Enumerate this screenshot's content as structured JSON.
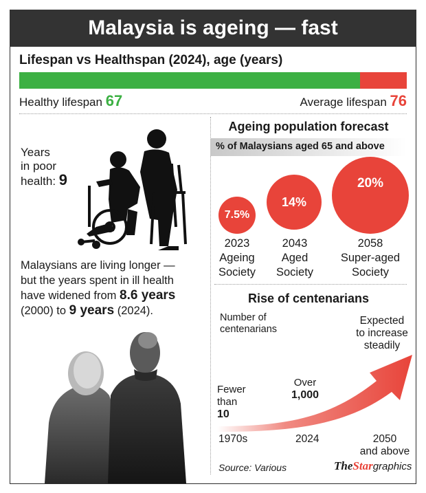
{
  "title": "Malaysia is ageing — fast",
  "lifespan": {
    "heading": "Lifespan vs Healthspan (2024), age (years)",
    "healthy_label": "Healthy lifespan",
    "healthy_value": "67",
    "average_label": "Average lifespan",
    "average_value": "76",
    "healthy_fraction": 0.88,
    "colors": {
      "healthy": "#3cb043",
      "unhealthy": "#e8443a"
    }
  },
  "poor_health": {
    "line1": "Years",
    "line2": "in poor",
    "line3": "health:",
    "value": "9"
  },
  "body_text": {
    "line1": "Malaysians are living longer —",
    "line2": "but the years spent in ill health",
    "line3_pre": "have widened from ",
    "line3_bold": "8.6 years",
    "line4_pre": "(2000) to ",
    "line4_bold": "9 years",
    "line4_post": " (2024)."
  },
  "forecast": {
    "heading": "Ageing population forecast",
    "subheading": "% of Malaysians aged 65 and above",
    "items": [
      {
        "value": "7.5%",
        "year": "2023",
        "label1": "Ageing",
        "label2": "Society"
      },
      {
        "value": "14%",
        "year": "2043",
        "label1": "Aged",
        "label2": "Society"
      },
      {
        "value": "20%",
        "year": "2058",
        "label1": "Super-aged",
        "label2": "Society"
      }
    ]
  },
  "centenarians": {
    "heading": "Rise of centenarians",
    "axis_label1": "Number of",
    "axis_label2": "centenarians",
    "note1_line1": "Fewer",
    "note1_line2": "than",
    "note1_value": "10",
    "note2_line1": "Over",
    "note2_value": "1,000",
    "note3_line1": "Expected",
    "note3_line2": "to increase",
    "note3_line3": "steadily",
    "x_labels": [
      "1970s",
      "2024",
      "2050",
      "and above"
    ]
  },
  "source": "Source: Various",
  "brand": {
    "the": "The",
    "star": "Star",
    "graphics": "graphics"
  }
}
